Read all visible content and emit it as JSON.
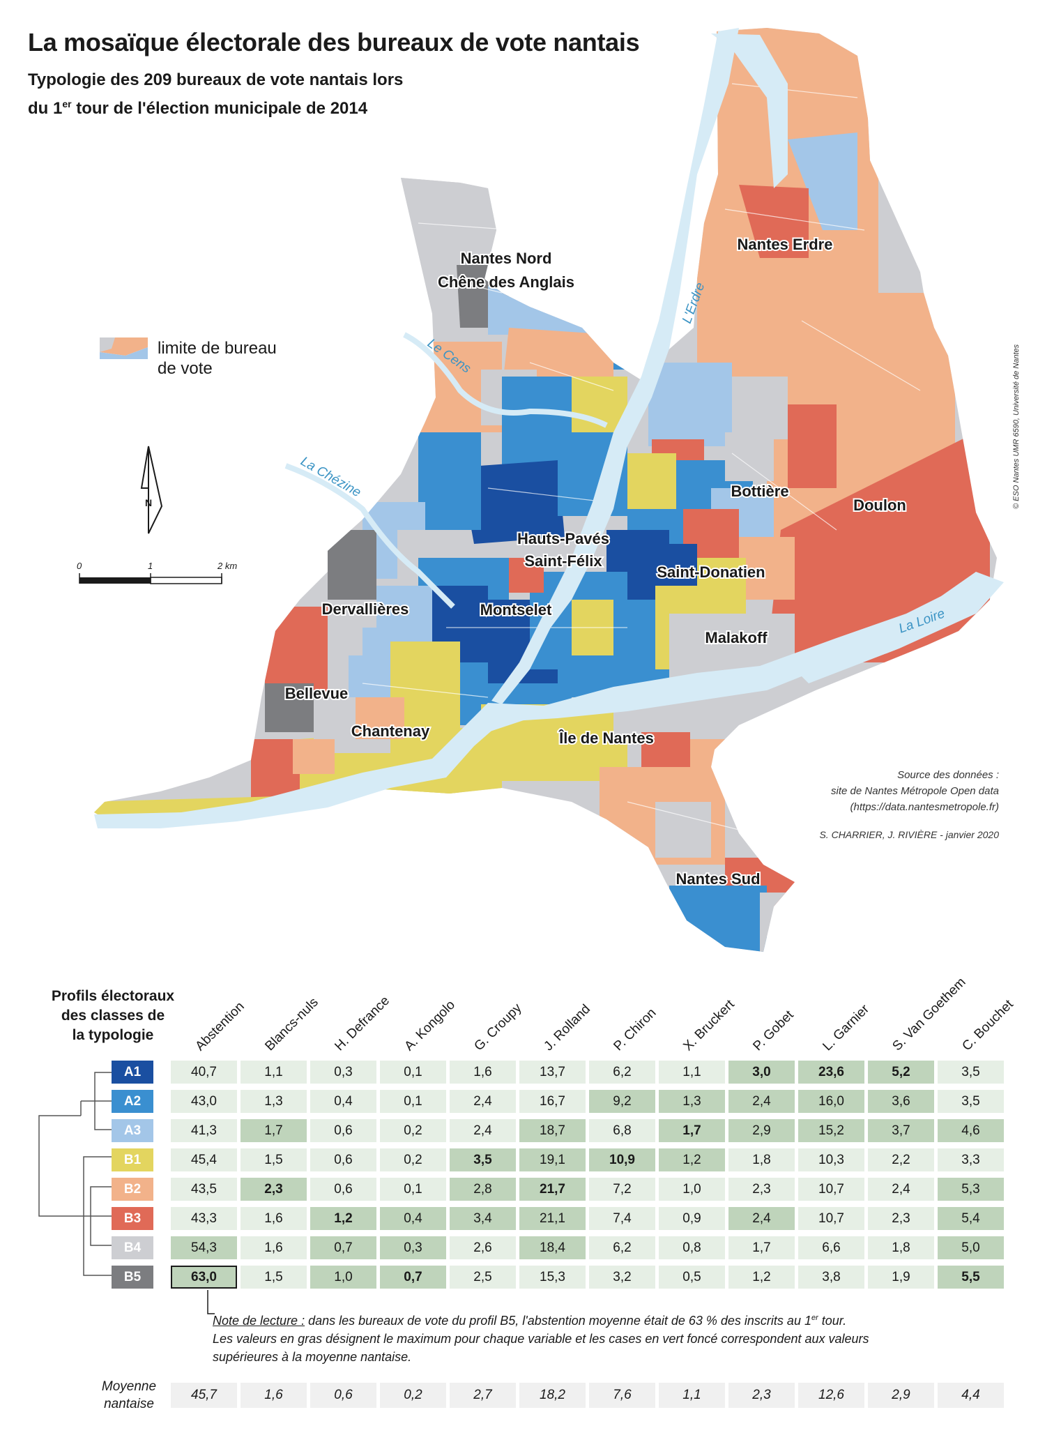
{
  "title": "La mosaïque électorale des bureaux de vote nantais",
  "subtitle": {
    "line1": "Typologie des 209 bureaux de vote nantais lors",
    "line2_pre": "du 1",
    "line2_sup": "er",
    "line2_post": " tour de l'élection municipale de 2014"
  },
  "colors": {
    "A1": "#1a4fa1",
    "A2": "#3a8fd0",
    "A3": "#a3c6e8",
    "B1": "#e3d55f",
    "B2": "#f2b28a",
    "B3": "#e06a57",
    "B4": "#cdced2",
    "B5": "#7c7d80",
    "water": "#d6ebf6",
    "river_label": "#3a93c4"
  },
  "legend": {
    "label_line1": "limite de bureau",
    "label_line2": "de vote"
  },
  "north_label": "N",
  "scale": {
    "labels": [
      "0",
      "1",
      "2 km"
    ]
  },
  "rivers": [
    "Le Cens",
    "La Chézine",
    "L'Erdre",
    "La Loire"
  ],
  "districts": [
    "Nantes Nord",
    "Chêne des Anglais",
    "Nantes Erdre",
    "Bottière",
    "Doulon",
    "Hauts-Pavés",
    "Saint-Félix",
    "Saint-Donatien",
    "Dervallières",
    "Montselet",
    "Malakoff",
    "Bellevue",
    "Chantenay",
    "Île de Nantes",
    "Nantes Sud"
  ],
  "credit_side": "© ESO Nantes UMR 6590, Université de Nantes",
  "source": {
    "line1": "Source des données :",
    "line2": "site de Nantes Métropole Open data",
    "line3": "(https://data.nantesmetropole.fr)"
  },
  "authors": "S. CHARRIER, J. RIVIÈRE - janvier 2020",
  "table": {
    "title_lines": [
      "Profils électoraux",
      "des classes de",
      "la typologie"
    ],
    "columns": [
      "Abstention",
      "Blancs-nuls",
      "H. Defrance",
      "A. Kongolo",
      "G. Croupy",
      "J. Rolland",
      "P. Chiron",
      "X. Bruckert",
      "P. Gobet",
      "L. Garnier",
      "S. Van Goethem",
      "C. Bouchet"
    ],
    "rows": [
      {
        "cls": "A1",
        "values": [
          "40,7",
          "1,1",
          "0,3",
          "0,1",
          "1,6",
          "13,7",
          "6,2",
          "1,1",
          "3,0",
          "23,6",
          "5,2",
          "3,5"
        ]
      },
      {
        "cls": "A2",
        "values": [
          "43,0",
          "1,3",
          "0,4",
          "0,1",
          "2,4",
          "16,7",
          "9,2",
          "1,3",
          "2,4",
          "16,0",
          "3,6",
          "3,5"
        ]
      },
      {
        "cls": "A3",
        "values": [
          "41,3",
          "1,7",
          "0,6",
          "0,2",
          "2,4",
          "18,7",
          "6,8",
          "1,7",
          "2,9",
          "15,2",
          "3,7",
          "4,6"
        ]
      },
      {
        "cls": "B1",
        "values": [
          "45,4",
          "1,5",
          "0,6",
          "0,2",
          "3,5",
          "19,1",
          "10,9",
          "1,2",
          "1,8",
          "10,3",
          "2,2",
          "3,3"
        ]
      },
      {
        "cls": "B2",
        "values": [
          "43,5",
          "2,3",
          "0,6",
          "0,1",
          "2,8",
          "21,7",
          "7,2",
          "1,0",
          "2,3",
          "10,7",
          "2,4",
          "5,3"
        ]
      },
      {
        "cls": "B3",
        "values": [
          "43,3",
          "1,6",
          "1,2",
          "0,4",
          "3,4",
          "21,1",
          "7,4",
          "0,9",
          "2,4",
          "10,7",
          "2,3",
          "5,4"
        ]
      },
      {
        "cls": "B4",
        "values": [
          "54,3",
          "1,6",
          "0,7",
          "0,3",
          "2,6",
          "18,4",
          "6,2",
          "0,8",
          "1,7",
          "6,6",
          "1,8",
          "5,0"
        ]
      },
      {
        "cls": "B5",
        "values": [
          "63,0",
          "1,5",
          "1,0",
          "0,7",
          "2,5",
          "15,3",
          "3,2",
          "0,5",
          "1,2",
          "3,8",
          "1,9",
          "5,5"
        ]
      }
    ],
    "average_label_lines": [
      "Moyenne",
      "nantaise"
    ],
    "average": [
      "45,7",
      "1,6",
      "0,6",
      "0,2",
      "2,7",
      "18,2",
      "7,6",
      "1,1",
      "2,3",
      "12,6",
      "2,9",
      "4,4"
    ]
  },
  "note": {
    "lead": "Note de lecture :",
    "text1": " dans les bureaux de vote du profil B5, l'abstention moyenne était de 63 % des inscrits au 1",
    "sup": "er",
    "text2": " tour.",
    "line2": "Les valeurs en gras désignent le maximum pour chaque variable et les cases en vert foncé correspondent aux valeurs",
    "line3": "supérieures à la moyenne nantaise."
  }
}
